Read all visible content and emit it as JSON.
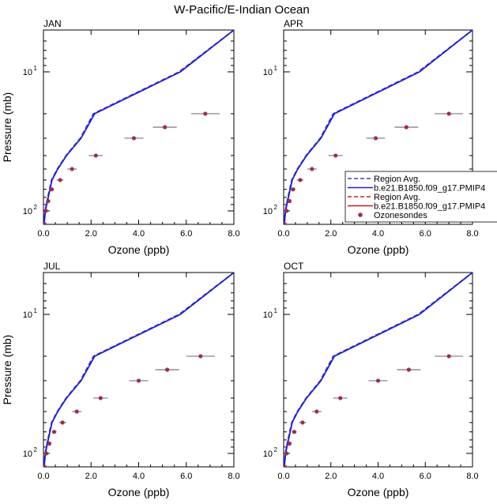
{
  "figure_title": "W-Pacific/E-Indian Ocean",
  "colors": {
    "region_avg_a": "#3a3ad8",
    "model_a": "#1f1fd6",
    "region_avg_b": "#c81e1e",
    "model_b": "#d01818",
    "obs": "#a02a52"
  },
  "legend": [
    {
      "label": "Region Avg.",
      "style": "dashed",
      "color": "#3a3ad8"
    },
    {
      "label": "b.e21.B1850.f09_g17.PMIP4",
      "style": "solid",
      "color": "#1f1fd6"
    },
    {
      "label": "Region Avg.",
      "style": "dashed",
      "color": "#c81e1e"
    },
    {
      "label": "b.e21.B1850.f09_g17.PMIP4",
      "style": "solid",
      "color": "#d01818"
    },
    {
      "label": "Ozonesondes",
      "style": "marker",
      "color": "#a02a52"
    }
  ],
  "chart_data": [
    {
      "type": "line",
      "panel": "JAN",
      "xlabel": "Ozone (ppb)",
      "ylabel": "Pressure (mb)",
      "xlim": [
        0,
        8
      ],
      "ylim": [
        125,
        5
      ],
      "yscale": "log",
      "x_ticks": [
        "0.0",
        "2.0",
        "4.0",
        "6.0",
        "8.0"
      ],
      "y_tick_labels": [
        {
          "value": 10,
          "base": "10",
          "exp": "1"
        },
        {
          "value": 100,
          "base": "10",
          "exp": "2"
        }
      ],
      "series": [
        {
          "name": "Region Avg.",
          "style": "dashed",
          "p": [
            125,
            100,
            80,
            60,
            50,
            40,
            30,
            20,
            10,
            5
          ],
          "o": [
            0.02,
            0.07,
            0.18,
            0.34,
            0.58,
            0.95,
            1.55,
            2.1,
            5.7,
            8.0
          ]
        },
        {
          "name": "b.e21.B1850.f09_g17.PMIP4",
          "style": "solid",
          "p": [
            125,
            100,
            80,
            60,
            50,
            40,
            30,
            20,
            10,
            5
          ],
          "o": [
            0.03,
            0.08,
            0.2,
            0.36,
            0.6,
            0.97,
            1.58,
            2.15,
            5.75,
            8.0
          ]
        }
      ],
      "observations": [
        {
          "p": 125,
          "o": 0.05,
          "err": 0.05
        },
        {
          "p": 100,
          "o": 0.1,
          "err": 0.06
        },
        {
          "p": 85,
          "o": 0.2,
          "err": 0.08
        },
        {
          "p": 70,
          "o": 0.35,
          "err": 0.1
        },
        {
          "p": 60,
          "o": 0.7,
          "err": 0.15
        },
        {
          "p": 50,
          "o": 1.2,
          "err": 0.2
        },
        {
          "p": 40,
          "o": 2.2,
          "err": 0.3
        },
        {
          "p": 30,
          "o": 3.8,
          "err": 0.4
        },
        {
          "p": 25,
          "o": 5.1,
          "err": 0.5
        },
        {
          "p": 20,
          "o": 6.8,
          "err": 0.6
        }
      ]
    },
    {
      "type": "line",
      "panel": "APR",
      "xlabel": "Ozone (ppb)",
      "ylabel": "",
      "xlim": [
        0,
        8
      ],
      "ylim": [
        125,
        5
      ],
      "yscale": "log",
      "x_ticks": [
        "0.0",
        "2.0",
        "4.0",
        "6.0",
        "8.0"
      ],
      "y_tick_labels": [
        {
          "value": 10,
          "base": "10",
          "exp": "1"
        },
        {
          "value": 100,
          "base": "10",
          "exp": "2"
        }
      ],
      "series": [
        {
          "name": "Region Avg.",
          "style": "dashed",
          "p": [
            125,
            100,
            80,
            60,
            50,
            40,
            30,
            20,
            10,
            5
          ],
          "o": [
            0.02,
            0.07,
            0.18,
            0.34,
            0.58,
            0.95,
            1.55,
            2.1,
            5.7,
            8.0
          ]
        },
        {
          "name": "b.e21.B1850.f09_g17.PMIP4",
          "style": "solid",
          "p": [
            125,
            100,
            80,
            60,
            50,
            40,
            30,
            20,
            10,
            5
          ],
          "o": [
            0.03,
            0.08,
            0.2,
            0.36,
            0.6,
            0.97,
            1.58,
            2.15,
            5.75,
            8.0
          ]
        }
      ],
      "observations": [
        {
          "p": 125,
          "o": 0.05,
          "err": 0.05
        },
        {
          "p": 100,
          "o": 0.12,
          "err": 0.06
        },
        {
          "p": 85,
          "o": 0.25,
          "err": 0.08
        },
        {
          "p": 70,
          "o": 0.4,
          "err": 0.1
        },
        {
          "p": 60,
          "o": 0.7,
          "err": 0.15
        },
        {
          "p": 50,
          "o": 1.2,
          "err": 0.2
        },
        {
          "p": 40,
          "o": 2.2,
          "err": 0.3
        },
        {
          "p": 30,
          "o": 3.9,
          "err": 0.4
        },
        {
          "p": 25,
          "o": 5.2,
          "err": 0.5
        },
        {
          "p": 20,
          "o": 7.0,
          "err": 0.6
        }
      ]
    },
    {
      "type": "line",
      "panel": "JUL",
      "xlabel": "Ozone (ppb)",
      "ylabel": "Pressure (mb)",
      "xlim": [
        0,
        8
      ],
      "ylim": [
        125,
        5
      ],
      "yscale": "log",
      "x_ticks": [
        "0.0",
        "2.0",
        "4.0",
        "6.0",
        "8.0"
      ],
      "y_tick_labels": [
        {
          "value": 10,
          "base": "10",
          "exp": "1"
        },
        {
          "value": 100,
          "base": "10",
          "exp": "2"
        }
      ],
      "series": [
        {
          "name": "Region Avg.",
          "style": "dashed",
          "p": [
            125,
            100,
            80,
            60,
            50,
            40,
            30,
            20,
            10,
            5
          ],
          "o": [
            0.02,
            0.07,
            0.18,
            0.34,
            0.58,
            0.95,
            1.55,
            2.1,
            5.7,
            8.0
          ]
        },
        {
          "name": "b.e21.B1850.f09_g17.PMIP4",
          "style": "solid",
          "p": [
            125,
            100,
            80,
            60,
            50,
            40,
            30,
            20,
            10,
            5
          ],
          "o": [
            0.03,
            0.08,
            0.2,
            0.36,
            0.6,
            0.97,
            1.58,
            2.15,
            5.75,
            8.0
          ]
        }
      ],
      "observations": [
        {
          "p": 125,
          "o": 0.05,
          "err": 0.05
        },
        {
          "p": 100,
          "o": 0.12,
          "err": 0.06
        },
        {
          "p": 85,
          "o": 0.25,
          "err": 0.08
        },
        {
          "p": 70,
          "o": 0.45,
          "err": 0.1
        },
        {
          "p": 60,
          "o": 0.8,
          "err": 0.15
        },
        {
          "p": 50,
          "o": 1.4,
          "err": 0.2
        },
        {
          "p": 40,
          "o": 2.4,
          "err": 0.3
        },
        {
          "p": 30,
          "o": 4.0,
          "err": 0.4
        },
        {
          "p": 25,
          "o": 5.2,
          "err": 0.5
        },
        {
          "p": 20,
          "o": 6.6,
          "err": 0.6
        }
      ]
    },
    {
      "type": "line",
      "panel": "OCT",
      "xlabel": "Ozone (ppb)",
      "ylabel": "",
      "xlim": [
        0,
        8
      ],
      "ylim": [
        125,
        5
      ],
      "yscale": "log",
      "x_ticks": [
        "0.0",
        "2.0",
        "4.0",
        "6.0",
        "8.0"
      ],
      "y_tick_labels": [
        {
          "value": 10,
          "base": "10",
          "exp": "1"
        },
        {
          "value": 100,
          "base": "10",
          "exp": "2"
        }
      ],
      "series": [
        {
          "name": "Region Avg.",
          "style": "dashed",
          "p": [
            125,
            100,
            80,
            60,
            50,
            40,
            30,
            20,
            10,
            5
          ],
          "o": [
            0.02,
            0.07,
            0.18,
            0.34,
            0.58,
            0.95,
            1.55,
            2.1,
            5.7,
            8.0
          ]
        },
        {
          "name": "b.e21.B1850.f09_g17.PMIP4",
          "style": "solid",
          "p": [
            125,
            100,
            80,
            60,
            50,
            40,
            30,
            20,
            10,
            5
          ],
          "o": [
            0.03,
            0.08,
            0.2,
            0.36,
            0.6,
            0.97,
            1.58,
            2.15,
            5.75,
            8.0
          ]
        }
      ],
      "observations": [
        {
          "p": 125,
          "o": 0.05,
          "err": 0.05
        },
        {
          "p": 100,
          "o": 0.12,
          "err": 0.06
        },
        {
          "p": 85,
          "o": 0.25,
          "err": 0.08
        },
        {
          "p": 70,
          "o": 0.45,
          "err": 0.1
        },
        {
          "p": 60,
          "o": 0.8,
          "err": 0.15
        },
        {
          "p": 50,
          "o": 1.4,
          "err": 0.2
        },
        {
          "p": 40,
          "o": 2.4,
          "err": 0.3
        },
        {
          "p": 30,
          "o": 4.0,
          "err": 0.4
        },
        {
          "p": 25,
          "o": 5.3,
          "err": 0.5
        },
        {
          "p": 20,
          "o": 7.0,
          "err": 0.6
        }
      ]
    }
  ]
}
